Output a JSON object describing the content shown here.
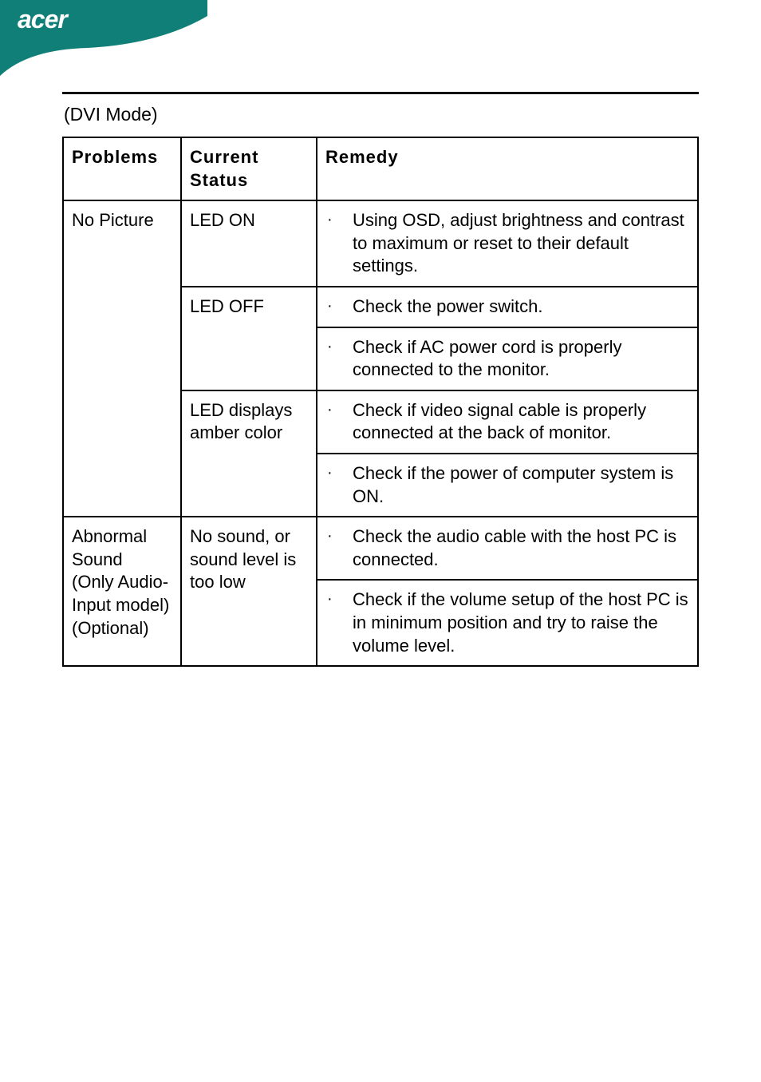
{
  "header": {
    "brand": "acer",
    "banner_fill": "#0f7f77",
    "text_color": "#ffffff"
  },
  "page": {
    "rule_color": "#000000",
    "mode_heading": "(DVI Mode)",
    "background": "#ffffff"
  },
  "table": {
    "border_color": "#000000",
    "font_size": 22,
    "columns": [
      "Problems",
      "Current Status",
      "Remedy"
    ],
    "bullet_char": "·",
    "groups": [
      {
        "problem": "No Picture",
        "statuses": [
          {
            "status": "LED ON",
            "remedies": [
              "Using OSD, adjust brightness and contrast to maximum or reset to their default settings."
            ]
          },
          {
            "status": "LED OFF",
            "remedies": [
              "Check the power switch.",
              "Check if AC power cord is properly connected to the monitor."
            ]
          },
          {
            "status": "LED displays amber color",
            "remedies": [
              "Check if video signal cable is properly connected at the back of monitor.",
              "Check if the power of computer system is ON."
            ]
          }
        ]
      },
      {
        "problem": "Abnormal Sound\n(Only Audio-Input model) (Optional)",
        "statuses": [
          {
            "status": "No sound,  or sound level is too low",
            "remedies": [
              "Check the audio cable with the host PC is connected.",
              "Check if the volume setup of the host PC is in minimum position and try to raise the volume level."
            ]
          }
        ]
      }
    ]
  }
}
